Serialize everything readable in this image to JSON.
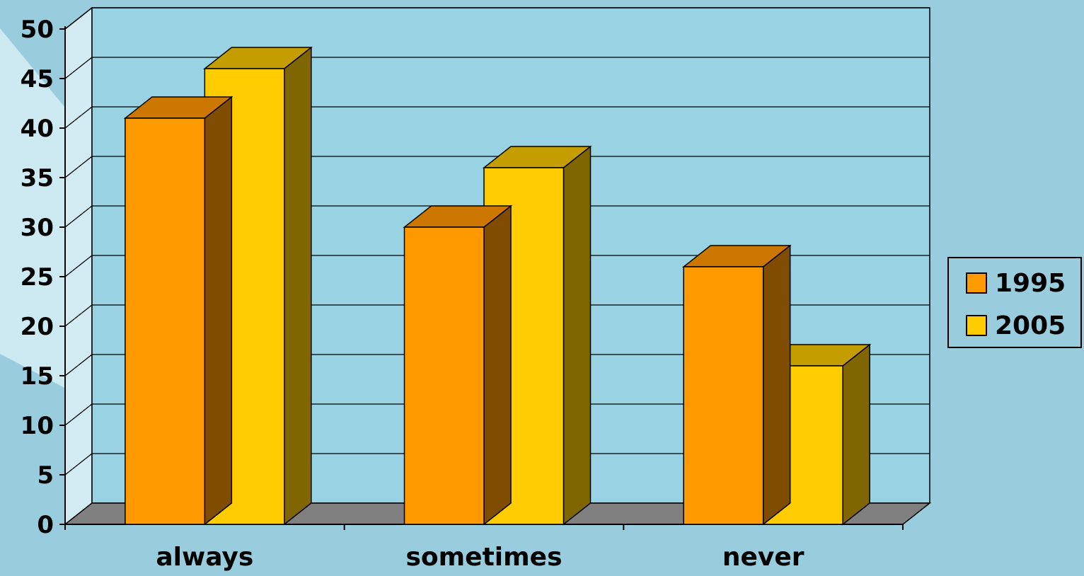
{
  "chart_data": {
    "type": "bar",
    "style": "3d-clustered-column",
    "categories": [
      "always",
      "sometimes",
      "never"
    ],
    "series": [
      {
        "name": "1995",
        "values": [
          41,
          30,
          26
        ],
        "color": "#FF9900",
        "top_color": "#CC7700",
        "side_color": "#804C00"
      },
      {
        "name": "2005",
        "values": [
          46,
          36,
          16
        ],
        "color": "#FFCC00",
        "top_color": "#C49E00",
        "side_color": "#806600"
      }
    ],
    "y_ticks": [
      "0",
      "5",
      "10",
      "15",
      "20",
      "25",
      "30",
      "35",
      "40",
      "45",
      "50"
    ],
    "ylim": [
      0,
      50
    ],
    "y_step": 5,
    "grid": true,
    "legend_position": "right",
    "colors": {
      "background": "#99CCDD",
      "plot_back_wall": "#99D3E3",
      "left_wall": "#D3EBF2",
      "floor": "#808080",
      "decor_stripe": "#CDE9F1"
    }
  }
}
